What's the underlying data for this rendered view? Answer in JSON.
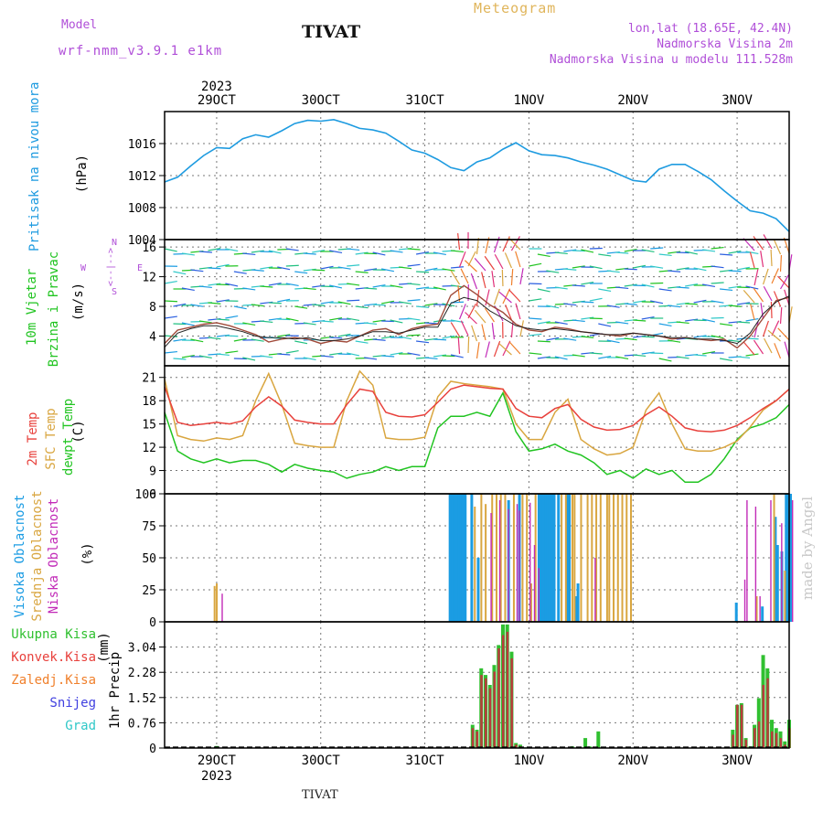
{
  "header": {
    "model_label": "Model",
    "model_name": "wrf-nmm_v3.9.1 e1km",
    "station": "TIVAT",
    "meteogram": "Meteogram",
    "lonlat": "lon,lat (18.65E, 42.4N)",
    "altitude": "Nadmorska Visina 2m",
    "model_altitude": "Nadmorska Visina u modelu 111.528m",
    "watermark": "made by Angel",
    "footer_station": "TIVAT"
  },
  "colors": {
    "pressure": "#1e9be0",
    "wind_speed_fill": "#b2222266",
    "temp2m": "#e8413c",
    "sfc_temp": "#d9a640",
    "dewpt": "#21c421",
    "cloud_high": "#1b9ce3",
    "cloud_mid": "#d9a640",
    "cloud_low": "#c22bb8",
    "rain_total": "#30c030",
    "rain_conv": "#b83c3c",
    "rain_frozen": "#f0802c",
    "snow": "#4040e0",
    "hail": "#30c8c8"
  },
  "chart_data": [
    {
      "type": "line",
      "panel": "pressure",
      "ylabel": [
        "Pritisak na nivou mora",
        "(hPa)"
      ],
      "ylim": [
        1004,
        1020
      ],
      "yticks": [
        1004,
        1008,
        1012,
        1016
      ],
      "x_unit": "hours since 2023-10-28 12 UTC",
      "x_top_labels": [
        "29OCT",
        "30OCT",
        "31OCT",
        "1NOV",
        "2NOV",
        "3NOV"
      ],
      "x_top_year": "2023",
      "x": [
        0,
        3,
        6,
        9,
        12,
        15,
        18,
        21,
        24,
        27,
        30,
        33,
        36,
        39,
        42,
        45,
        48,
        51,
        54,
        57,
        60,
        63,
        66,
        69,
        72,
        75,
        78,
        81,
        84,
        87,
        90,
        93,
        96,
        99,
        102,
        105,
        108,
        111,
        114,
        117,
        120,
        123,
        126,
        129,
        132,
        135,
        138,
        141,
        144
      ],
      "series": [
        {
          "values": [
            1011.2,
            1011.8,
            1013.2,
            1014.5,
            1015.5,
            1015.4,
            1016.6,
            1017.1,
            1016.8,
            1017.6,
            1018.5,
            1018.9,
            1018.8,
            1019.0,
            1018.5,
            1017.9,
            1017.7,
            1017.3,
            1016.3,
            1015.2,
            1014.8,
            1014.0,
            1013.0,
            1012.6,
            1013.7,
            1014.2,
            1015.3,
            1016.1,
            1015.1,
            1014.6,
            1014.5,
            1014.2,
            1013.7,
            1013.3,
            1012.8,
            1012.1,
            1011.4,
            1011.2,
            1012.8,
            1013.4,
            1013.4,
            1012.5,
            1011.5,
            1010.1,
            1008.8,
            1007.6,
            1007.3,
            1006.6,
            1005.0
          ]
        }
      ]
    },
    {
      "type": "line",
      "panel": "wind",
      "ylabel": [
        "10m Vjetar",
        "Brzina i Pravac",
        "(m/s)"
      ],
      "compass": {
        "n": "N",
        "s": "S",
        "e": "E",
        "w": "W",
        "arrows": "<--|-->"
      },
      "ylim": [
        0,
        17
      ],
      "yticks": [
        4,
        8,
        12,
        16
      ],
      "x_unit": "hours since 2023-10-28 12 UTC",
      "x": [
        0,
        3,
        6,
        9,
        12,
        15,
        18,
        21,
        24,
        27,
        30,
        33,
        36,
        39,
        42,
        45,
        48,
        51,
        54,
        57,
        60,
        63,
        66,
        69,
        72,
        75,
        78,
        81,
        84,
        87,
        90,
        93,
        96,
        99,
        102,
        105,
        108,
        111,
        114,
        117,
        120,
        123,
        126,
        129,
        132,
        135,
        138,
        141,
        144
      ],
      "series": [
        {
          "values": [
            3.0,
            4.8,
            5.2,
            5.6,
            5.8,
            5.4,
            4.8,
            4.2,
            3.2,
            3.6,
            3.8,
            3.6,
            3.0,
            3.4,
            3.2,
            4.0,
            4.8,
            5.0,
            4.2,
            5.0,
            5.4,
            5.6,
            9.5,
            10.8,
            9.6,
            8.2,
            7.2,
            5.6,
            4.8,
            4.6,
            5.2,
            5.0,
            4.6,
            4.4,
            4.2,
            4.0,
            4.4,
            4.2,
            4.0,
            3.6,
            3.8,
            3.6,
            3.4,
            3.6,
            2.4,
            4.0,
            6.4,
            8.8,
            9.2
          ]
        },
        {
          "values": [
            2.5,
            4.4,
            5.0,
            5.4,
            5.4,
            5.0,
            4.6,
            4.0,
            3.8,
            3.8,
            3.6,
            3.8,
            3.4,
            3.4,
            3.6,
            4.0,
            4.6,
            4.6,
            4.4,
            4.8,
            5.2,
            5.2,
            8.4,
            9.2,
            8.8,
            7.4,
            6.4,
            5.4,
            5.0,
            4.8,
            5.0,
            4.8,
            4.6,
            4.4,
            4.2,
            4.2,
            4.4,
            4.2,
            4.0,
            3.8,
            3.8,
            3.6,
            3.6,
            3.4,
            3.0,
            4.4,
            7.0,
            8.6,
            9.4
          ]
        }
      ]
    },
    {
      "type": "line",
      "panel": "temperature",
      "ylabel": [
        "2m Temp",
        "SFC Temp",
        "dewpt Temp",
        "(C)"
      ],
      "ylim": [
        6,
        22.5
      ],
      "yticks": [
        6,
        9,
        12,
        15,
        18,
        21
      ],
      "x_unit": "hours since 2023-10-28 12 UTC",
      "x": [
        0,
        3,
        6,
        9,
        12,
        15,
        18,
        21,
        24,
        27,
        30,
        33,
        36,
        39,
        42,
        45,
        48,
        51,
        54,
        57,
        60,
        63,
        66,
        69,
        72,
        75,
        78,
        81,
        84,
        87,
        90,
        93,
        96,
        99,
        102,
        105,
        108,
        111,
        114,
        117,
        120,
        123,
        126,
        129,
        132,
        135,
        138,
        141,
        144
      ],
      "series": [
        {
          "name": "2m Temp",
          "values": [
            19.8,
            15.2,
            14.8,
            15.0,
            15.2,
            15.0,
            15.4,
            17.2,
            18.5,
            17.3,
            15.5,
            15.2,
            15.0,
            15.0,
            17.5,
            19.5,
            19.2,
            16.5,
            16.0,
            15.9,
            16.2,
            17.8,
            19.5,
            20.0,
            19.8,
            19.6,
            19.5,
            17.0,
            16.0,
            15.8,
            17.0,
            17.5,
            15.6,
            14.6,
            14.2,
            14.3,
            14.8,
            16.2,
            17.2,
            16.0,
            14.5,
            14.1,
            14.0,
            14.2,
            14.8,
            15.8,
            17.0,
            18.0,
            19.5
          ]
        },
        {
          "name": "SFC Temp",
          "values": [
            20.8,
            13.5,
            13.0,
            12.8,
            13.2,
            13.0,
            13.5,
            18.0,
            21.5,
            17.5,
            12.5,
            12.2,
            12.0,
            12.0,
            18.0,
            21.8,
            20.0,
            13.2,
            13.0,
            13.0,
            13.3,
            18.5,
            20.5,
            20.2,
            20.0,
            19.8,
            19.5,
            15.0,
            13.0,
            13.0,
            16.5,
            18.2,
            13.0,
            11.8,
            11.0,
            11.2,
            12.0,
            16.8,
            19.0,
            15.0,
            11.8,
            11.5,
            11.5,
            12.0,
            12.8,
            14.6,
            16.8,
            18.0,
            19.5
          ]
        },
        {
          "name": "dewpt Temp",
          "values": [
            16.5,
            11.5,
            10.5,
            10.0,
            10.5,
            10.0,
            10.3,
            10.3,
            9.8,
            8.8,
            9.8,
            9.3,
            9.0,
            8.8,
            8.0,
            8.5,
            8.8,
            9.5,
            9.0,
            9.5,
            9.5,
            14.5,
            16.0,
            16.0,
            16.5,
            16.0,
            19.0,
            14.0,
            11.5,
            11.8,
            12.4,
            11.5,
            11.0,
            10.0,
            8.5,
            9.0,
            8.0,
            9.2,
            8.5,
            9.0,
            7.5,
            7.5,
            8.5,
            10.5,
            13.0,
            14.5,
            15.0,
            15.8,
            17.5
          ]
        }
      ]
    },
    {
      "type": "bar",
      "panel": "clouds",
      "ylabel": [
        "Visoka Oblacnost",
        "Srednja Oblacnost",
        "Niska Oblacnost",
        "(%)"
      ],
      "ylim": [
        0,
        100
      ],
      "yticks": [
        0,
        25,
        50,
        75,
        100
      ],
      "x_unit": "hours since 2023-10-28 12 UTC",
      "series": [
        {
          "name": "Visoka Oblacnost",
          "x": [
            65.5,
            66.0,
            66.5,
            67.0,
            67.5,
            68.0,
            68.5,
            69.0,
            70.5,
            72.0,
            79.0,
            81.5,
            86.0,
            86.5,
            87.0,
            87.5,
            88.0,
            88.5,
            89.0,
            89.5,
            90.5,
            92.5,
            93.0,
            94.5,
            95.0,
            131.5,
            137.5,
            140.5,
            141.0,
            142.0,
            143.0,
            143.5,
            144.0
          ],
          "values": [
            100,
            100,
            100,
            100,
            100,
            100,
            100,
            100,
            100,
            50,
            95,
            100,
            100,
            100,
            100,
            100,
            100,
            100,
            100,
            100,
            100,
            100,
            100,
            20,
            30,
            15,
            12,
            82,
            60,
            55,
            100,
            100,
            100
          ]
        },
        {
          "name": "Srednja Oblacnost",
          "x": [
            11.0,
            11.5,
            71.0,
            72.5,
            73.5,
            75.0,
            76.0,
            77.0,
            78.0,
            80.0,
            82.0,
            83.0,
            84.0,
            85.0,
            91.0,
            92.0,
            93.5,
            94.0,
            95.5,
            97.0,
            98.0,
            99.0,
            100.0,
            101.5,
            102.0,
            103.0,
            104.0,
            105.0,
            106.0,
            107.0,
            136.0,
            140.0,
            142.5
          ],
          "values": [
            28,
            30,
            90,
            100,
            92,
            100,
            100,
            100,
            100,
            100,
            100,
            100,
            30,
            100,
            100,
            100,
            100,
            100,
            100,
            100,
            100,
            100,
            100,
            100,
            100,
            100,
            100,
            100,
            100,
            100,
            20,
            100,
            40
          ]
        },
        {
          "name": "Niska Oblacnost",
          "x": [
            12.5,
            74.5,
            76.5,
            78.5,
            80.5,
            81.0,
            83.5,
            84.5,
            85.5,
            98.5,
            133.0,
            133.5,
            135.5,
            136.5,
            139.0,
            141.5,
            144.0
          ],
          "values": [
            22,
            85,
            95,
            88,
            92,
            87,
            93,
            60,
            42,
            50,
            33,
            95,
            90,
            20,
            95,
            77,
            95
          ]
        }
      ]
    },
    {
      "type": "bar",
      "panel": "precip",
      "legend": [
        "Ukupna Kisa",
        "Konvek.Kisa",
        "Zaledj.Kisa",
        "Snijeg",
        "Grad"
      ],
      "ylabel": [
        "1hr Precip",
        "(mm)"
      ],
      "ylim": [
        0,
        3.8
      ],
      "yticks": [
        0,
        0.76,
        1.52,
        2.28,
        3.04
      ],
      "x_unit": "hours since 2023-10-28 12 UTC",
      "x_bottom_labels": [
        "29OCT",
        "30OCT",
        "31OCT",
        "1NOV",
        "2NOV",
        "3NOV"
      ],
      "x_bottom_year": "2023",
      "series": [
        {
          "name": "Ukupna Kisa",
          "x": [
            12,
            71,
            72,
            73,
            74,
            75,
            76,
            77,
            78,
            79,
            80,
            81,
            82,
            83,
            84,
            85,
            94,
            97,
            98,
            100,
            131,
            132,
            133,
            134,
            135,
            136,
            137,
            138,
            139,
            140,
            141,
            142,
            143,
            144
          ],
          "values": [
            0.06,
            0.7,
            0.55,
            2.4,
            2.2,
            1.9,
            2.5,
            3.1,
            3.72,
            3.72,
            2.9,
            0.15,
            0.1,
            0.02,
            0.01,
            0.01,
            0.05,
            0.3,
            0.05,
            0.5,
            0.55,
            1.3,
            1.35,
            0.3,
            0.05,
            0.7,
            1.5,
            2.8,
            2.4,
            0.85,
            0.6,
            0.5,
            0.2,
            0.85
          ]
        },
        {
          "name": "Konvek.Kisa",
          "x": [
            12,
            71,
            72,
            73,
            74,
            75,
            76,
            77,
            78,
            79,
            80,
            81,
            82,
            131,
            132,
            133,
            134,
            136,
            137,
            138,
            139,
            140,
            141,
            142,
            143,
            144
          ],
          "values": [
            0.04,
            0.6,
            0.5,
            2.2,
            2.1,
            1.8,
            2.3,
            3.0,
            3.4,
            3.5,
            2.7,
            0.1,
            0.05,
            0.4,
            1.3,
            1.3,
            0.25,
            0.6,
            0.8,
            1.9,
            2.1,
            0.5,
            0.45,
            0.3,
            0.1,
            0.6
          ]
        }
      ]
    }
  ]
}
